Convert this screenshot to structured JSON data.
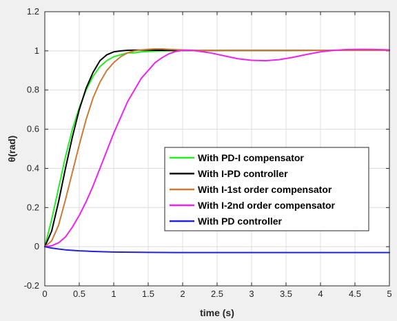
{
  "chart_data": {
    "type": "line",
    "xlabel": "time (s)",
    "ylabel": "θ(rad)",
    "xlim": [
      0,
      5
    ],
    "ylim": [
      -0.2,
      1.2
    ],
    "xticks": [
      "0",
      "0.5",
      "1",
      "1.5",
      "2",
      "2.5",
      "3",
      "3.5",
      "4",
      "4.5",
      "5"
    ],
    "yticks": [
      "-0.2",
      "0",
      "0.2",
      "0.4",
      "0.6",
      "0.8",
      "1",
      "1.2"
    ],
    "grid": true,
    "legend_position": "center-right",
    "series": [
      {
        "name": "With PD-I compensator",
        "color": "#22ee22",
        "x": [
          0,
          0.1,
          0.2,
          0.3,
          0.4,
          0.5,
          0.6,
          0.7,
          0.8,
          0.9,
          1.0,
          1.1,
          1.2,
          1.3,
          1.4,
          1.5,
          1.7,
          2.0,
          2.5,
          3.0,
          3.5,
          4.0,
          4.5,
          5.0
        ],
        "y": [
          0,
          0.14,
          0.3,
          0.46,
          0.6,
          0.71,
          0.8,
          0.87,
          0.92,
          0.95,
          0.97,
          0.98,
          0.99,
          0.99,
          0.995,
          0.997,
          1.0,
          1.002,
          1.002,
          1.002,
          1.002,
          1.003,
          1.003,
          1.003
        ]
      },
      {
        "name": "With I-PD controller",
        "color": "#000000",
        "x": [
          0,
          0.1,
          0.2,
          0.3,
          0.4,
          0.5,
          0.6,
          0.7,
          0.8,
          0.9,
          1.0,
          1.1,
          1.2,
          1.3,
          1.5,
          1.7,
          2.0,
          2.5,
          3.0,
          3.5,
          4.0,
          4.5,
          5.0
        ],
        "y": [
          0,
          0.08,
          0.23,
          0.4,
          0.56,
          0.7,
          0.81,
          0.89,
          0.95,
          0.98,
          0.995,
          1.0,
          1.003,
          1.004,
          1.004,
          1.003,
          1.002,
          1.002,
          1.002,
          1.002,
          1.003,
          1.003,
          1.003
        ]
      },
      {
        "name": "With I-1st order compensator",
        "color": "#cc7a33",
        "x": [
          0,
          0.1,
          0.2,
          0.3,
          0.4,
          0.5,
          0.6,
          0.7,
          0.8,
          0.9,
          1.0,
          1.1,
          1.2,
          1.3,
          1.4,
          1.5,
          1.6,
          1.7,
          1.8,
          2.0,
          2.2,
          2.5,
          3.0,
          3.5,
          4.0,
          4.5,
          5.0
        ],
        "y": [
          0,
          0.03,
          0.11,
          0.24,
          0.38,
          0.52,
          0.65,
          0.76,
          0.84,
          0.9,
          0.94,
          0.97,
          0.99,
          1.0,
          1.005,
          1.008,
          1.01,
          1.01,
          1.008,
          1.005,
          1.003,
          1.002,
          1.002,
          1.002,
          1.003,
          1.003,
          1.003
        ]
      },
      {
        "name": "With I-2nd order compensator",
        "color": "#ee22ee",
        "x": [
          0,
          0.1,
          0.2,
          0.3,
          0.4,
          0.5,
          0.6,
          0.7,
          0.8,
          0.9,
          1.0,
          1.1,
          1.2,
          1.3,
          1.4,
          1.5,
          1.6,
          1.7,
          1.8,
          1.9,
          2.0,
          2.1,
          2.2,
          2.4,
          2.6,
          2.8,
          3.0,
          3.2,
          3.4,
          3.6,
          3.8,
          4.0,
          4.2,
          4.4,
          4.6,
          4.8,
          5.0
        ],
        "y": [
          0,
          0.005,
          0.02,
          0.05,
          0.1,
          0.16,
          0.23,
          0.31,
          0.4,
          0.49,
          0.58,
          0.66,
          0.74,
          0.8,
          0.86,
          0.9,
          0.94,
          0.965,
          0.985,
          0.997,
          1.003,
          1.003,
          1.0,
          0.99,
          0.975,
          0.96,
          0.952,
          0.95,
          0.955,
          0.967,
          0.982,
          0.995,
          1.003,
          1.007,
          1.008,
          1.007,
          1.005
        ]
      },
      {
        "name": "With PD controller",
        "color": "#2222dd",
        "x": [
          0,
          0.1,
          0.2,
          0.3,
          0.5,
          0.7,
          1.0,
          1.5,
          2.0,
          2.5,
          3.0,
          4.0,
          5.0
        ],
        "y": [
          0,
          -0.007,
          -0.012,
          -0.016,
          -0.021,
          -0.024,
          -0.027,
          -0.029,
          -0.03,
          -0.03,
          -0.03,
          -0.03,
          -0.03
        ]
      }
    ]
  }
}
